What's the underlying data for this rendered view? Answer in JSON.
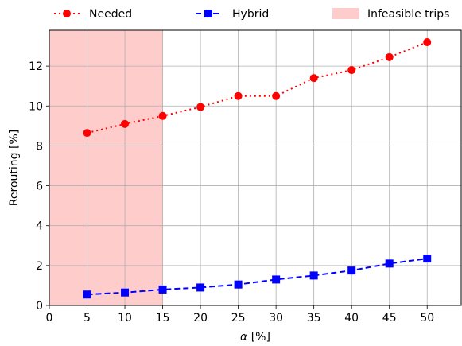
{
  "chart_data": {
    "type": "line",
    "title": "",
    "xlabel_symbol": "α",
    "xlabel_unit": " [%]",
    "ylabel": "Rerouting [%]",
    "xlim": [
      0,
      54.5
    ],
    "ylim": [
      0,
      13.8
    ],
    "x_ticks": [
      0,
      5,
      10,
      15,
      20,
      25,
      30,
      35,
      40,
      45,
      50
    ],
    "y_ticks": [
      0,
      2,
      4,
      6,
      8,
      10,
      12
    ],
    "grid": true,
    "legend_position": "top, above plot",
    "shaded_region": {
      "name": "Infeasible trips",
      "x_start": 0,
      "x_end": 15,
      "color": "#ffcccc"
    },
    "x": [
      5,
      10,
      15,
      20,
      25,
      30,
      35,
      40,
      45,
      50
    ],
    "series": [
      {
        "name": "Needed",
        "values": [
          8.65,
          9.1,
          9.5,
          9.95,
          10.5,
          10.5,
          11.4,
          11.8,
          12.45,
          13.2
        ],
        "color": "#ff0000",
        "line_style": "dotted",
        "marker": "circle"
      },
      {
        "name": "Hybrid",
        "values": [
          0.55,
          0.65,
          0.8,
          0.9,
          1.05,
          1.3,
          1.5,
          1.75,
          2.1,
          2.35
        ],
        "color": "#0000ff",
        "line_style": "dashed",
        "marker": "square"
      }
    ]
  }
}
